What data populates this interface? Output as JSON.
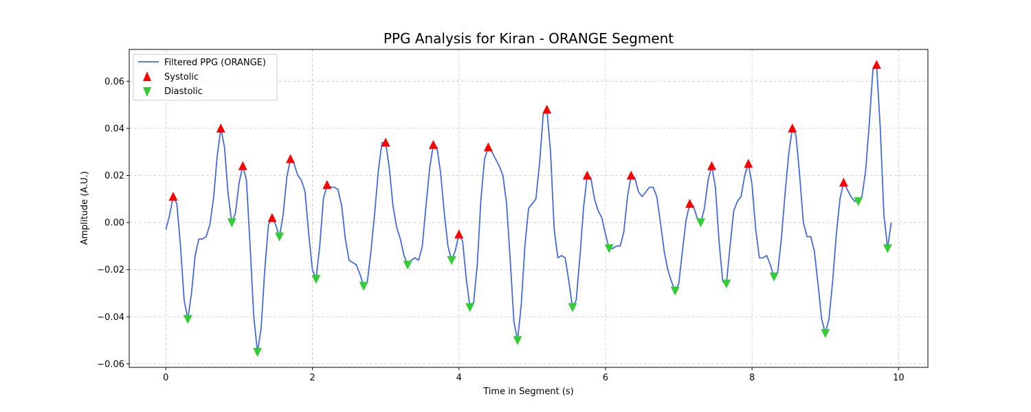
{
  "chart_data": {
    "type": "line",
    "title": "PPG Analysis for Kiran - ORANGE Segment",
    "xlabel": "Time in Segment (s)",
    "ylabel": "Amplitude (A.U.)",
    "xlim": [
      -0.5,
      10.4
    ],
    "ylim": [
      -0.0615,
      0.0735
    ],
    "xticks": [
      0,
      2,
      4,
      6,
      8,
      10
    ],
    "xtick_labels": [
      "0",
      "2",
      "4",
      "6",
      "8",
      "10"
    ],
    "yticks": [
      -0.06,
      -0.04,
      -0.02,
      0.0,
      0.02,
      0.04,
      0.06
    ],
    "ytick_labels": [
      "−0.06",
      "−0.04",
      "−0.02",
      "0.00",
      "0.02",
      "0.04",
      "0.06"
    ],
    "grid": true,
    "legend_position": "upper-left",
    "legend": [
      {
        "label": "Filtered PPG (ORANGE)",
        "kind": "line",
        "color": "#4169e1"
      },
      {
        "label": "Systolic",
        "kind": "triangle-up",
        "color": "#ff0000"
      },
      {
        "label": "Diastolic",
        "kind": "triangle-down",
        "color": "#32cd32"
      }
    ],
    "series": [
      {
        "name": "Filtered PPG (ORANGE)",
        "color": "#4169e1",
        "points": [
          [
            0.0,
            -0.003
          ],
          [
            0.05,
            0.003
          ],
          [
            0.1,
            0.011
          ],
          [
            0.15,
            0.008
          ],
          [
            0.2,
            -0.01
          ],
          [
            0.25,
            -0.033
          ],
          [
            0.3,
            -0.041
          ],
          [
            0.35,
            -0.03
          ],
          [
            0.4,
            -0.014
          ],
          [
            0.45,
            -0.007
          ],
          [
            0.5,
            -0.007
          ],
          [
            0.55,
            -0.006
          ],
          [
            0.6,
            -0.001
          ],
          [
            0.65,
            0.01
          ],
          [
            0.7,
            0.028
          ],
          [
            0.75,
            0.04
          ],
          [
            0.8,
            0.032
          ],
          [
            0.85,
            0.012
          ],
          [
            0.9,
            0.0
          ],
          [
            0.95,
            0.004
          ],
          [
            1.0,
            0.017
          ],
          [
            1.05,
            0.024
          ],
          [
            1.1,
            0.018
          ],
          [
            1.15,
            -0.01
          ],
          [
            1.2,
            -0.04
          ],
          [
            1.25,
            -0.055
          ],
          [
            1.3,
            -0.045
          ],
          [
            1.35,
            -0.02
          ],
          [
            1.4,
            -0.001
          ],
          [
            1.45,
            0.002
          ],
          [
            1.5,
            -0.001
          ],
          [
            1.55,
            -0.006
          ],
          [
            1.6,
            0.003
          ],
          [
            1.65,
            0.019
          ],
          [
            1.7,
            0.027
          ],
          [
            1.75,
            0.025
          ],
          [
            1.8,
            0.02
          ],
          [
            1.85,
            0.018
          ],
          [
            1.9,
            0.013
          ],
          [
            1.95,
            -0.005
          ],
          [
            2.0,
            -0.02
          ],
          [
            2.05,
            -0.024
          ],
          [
            2.1,
            -0.01
          ],
          [
            2.15,
            0.01
          ],
          [
            2.2,
            0.016
          ],
          [
            2.25,
            0.015
          ],
          [
            2.3,
            0.015
          ],
          [
            2.35,
            0.014
          ],
          [
            2.4,
            0.007
          ],
          [
            2.45,
            -0.007
          ],
          [
            2.5,
            -0.016
          ],
          [
            2.55,
            -0.017
          ],
          [
            2.6,
            -0.018
          ],
          [
            2.65,
            -0.022
          ],
          [
            2.7,
            -0.027
          ],
          [
            2.75,
            -0.025
          ],
          [
            2.8,
            -0.012
          ],
          [
            2.85,
            0.004
          ],
          [
            2.9,
            0.022
          ],
          [
            2.95,
            0.034
          ],
          [
            3.0,
            0.034
          ],
          [
            3.05,
            0.023
          ],
          [
            3.1,
            0.007
          ],
          [
            3.15,
            -0.002
          ],
          [
            3.2,
            -0.007
          ],
          [
            3.25,
            -0.014
          ],
          [
            3.3,
            -0.018
          ],
          [
            3.35,
            -0.016
          ],
          [
            3.4,
            -0.015
          ],
          [
            3.45,
            -0.016
          ],
          [
            3.5,
            -0.01
          ],
          [
            3.55,
            0.007
          ],
          [
            3.6,
            0.023
          ],
          [
            3.65,
            0.033
          ],
          [
            3.7,
            0.032
          ],
          [
            3.75,
            0.021
          ],
          [
            3.8,
            0.004
          ],
          [
            3.85,
            -0.01
          ],
          [
            3.9,
            -0.016
          ],
          [
            3.95,
            -0.012
          ],
          [
            4.0,
            -0.005
          ],
          [
            4.05,
            -0.008
          ],
          [
            4.1,
            -0.024
          ],
          [
            4.15,
            -0.036
          ],
          [
            4.2,
            -0.034
          ],
          [
            4.25,
            -0.018
          ],
          [
            4.3,
            0.01
          ],
          [
            4.35,
            0.027
          ],
          [
            4.4,
            0.032
          ],
          [
            4.45,
            0.03
          ],
          [
            4.5,
            0.027
          ],
          [
            4.55,
            0.024
          ],
          [
            4.6,
            0.02
          ],
          [
            4.65,
            0.008
          ],
          [
            4.7,
            -0.016
          ],
          [
            4.75,
            -0.042
          ],
          [
            4.8,
            -0.05
          ],
          [
            4.85,
            -0.035
          ],
          [
            4.9,
            -0.01
          ],
          [
            4.95,
            0.006
          ],
          [
            5.0,
            0.008
          ],
          [
            5.05,
            0.01
          ],
          [
            5.1,
            0.025
          ],
          [
            5.15,
            0.046
          ],
          [
            5.2,
            0.048
          ],
          [
            5.25,
            0.03
          ],
          [
            5.3,
            -0.003
          ],
          [
            5.35,
            -0.015
          ],
          [
            5.4,
            -0.014
          ],
          [
            5.45,
            -0.015
          ],
          [
            5.5,
            -0.025
          ],
          [
            5.55,
            -0.036
          ],
          [
            5.6,
            -0.033
          ],
          [
            5.65,
            -0.015
          ],
          [
            5.7,
            0.006
          ],
          [
            5.75,
            0.02
          ],
          [
            5.8,
            0.019
          ],
          [
            5.85,
            0.01
          ],
          [
            5.9,
            0.005
          ],
          [
            5.95,
            0.002
          ],
          [
            6.0,
            -0.005
          ],
          [
            6.05,
            -0.011
          ],
          [
            6.1,
            -0.011
          ],
          [
            6.15,
            -0.01
          ],
          [
            6.2,
            -0.01
          ],
          [
            6.25,
            -0.004
          ],
          [
            6.3,
            0.011
          ],
          [
            6.35,
            0.02
          ],
          [
            6.4,
            0.019
          ],
          [
            6.45,
            0.013
          ],
          [
            6.5,
            0.011
          ],
          [
            6.55,
            0.013
          ],
          [
            6.6,
            0.015
          ],
          [
            6.65,
            0.015
          ],
          [
            6.7,
            0.011
          ],
          [
            6.75,
            0.0
          ],
          [
            6.8,
            -0.012
          ],
          [
            6.85,
            -0.02
          ],
          [
            6.9,
            -0.025
          ],
          [
            6.95,
            -0.029
          ],
          [
            7.0,
            -0.026
          ],
          [
            7.05,
            -0.012
          ],
          [
            7.1,
            0.001
          ],
          [
            7.15,
            0.008
          ],
          [
            7.2,
            0.007
          ],
          [
            7.25,
            0.002
          ],
          [
            7.3,
            0.0
          ],
          [
            7.35,
            0.006
          ],
          [
            7.4,
            0.018
          ],
          [
            7.45,
            0.024
          ],
          [
            7.5,
            0.015
          ],
          [
            7.55,
            -0.008
          ],
          [
            7.6,
            -0.025
          ],
          [
            7.65,
            -0.026
          ],
          [
            7.7,
            -0.01
          ],
          [
            7.75,
            0.005
          ],
          [
            7.8,
            0.009
          ],
          [
            7.85,
            0.011
          ],
          [
            7.9,
            0.02
          ],
          [
            7.95,
            0.025
          ],
          [
            8.0,
            0.016
          ],
          [
            8.05,
            -0.003
          ],
          [
            8.1,
            -0.015
          ],
          [
            8.15,
            -0.015
          ],
          [
            8.2,
            -0.014
          ],
          [
            8.25,
            -0.018
          ],
          [
            8.3,
            -0.023
          ],
          [
            8.35,
            -0.021
          ],
          [
            8.4,
            -0.007
          ],
          [
            8.45,
            0.012
          ],
          [
            8.5,
            0.029
          ],
          [
            8.55,
            0.04
          ],
          [
            8.6,
            0.037
          ],
          [
            8.65,
            0.02
          ],
          [
            8.7,
            0.0
          ],
          [
            8.75,
            -0.006
          ],
          [
            8.8,
            -0.006
          ],
          [
            8.85,
            -0.012
          ],
          [
            8.9,
            -0.026
          ],
          [
            8.95,
            -0.041
          ],
          [
            9.0,
            -0.047
          ],
          [
            9.05,
            -0.041
          ],
          [
            9.1,
            -0.025
          ],
          [
            9.15,
            -0.005
          ],
          [
            9.2,
            0.01
          ],
          [
            9.25,
            0.017
          ],
          [
            9.3,
            0.014
          ],
          [
            9.35,
            0.011
          ],
          [
            9.4,
            0.009
          ],
          [
            9.45,
            0.009
          ],
          [
            9.5,
            0.011
          ],
          [
            9.55,
            0.022
          ],
          [
            9.6,
            0.042
          ],
          [
            9.65,
            0.065
          ],
          [
            9.7,
            0.067
          ],
          [
            9.75,
            0.04
          ],
          [
            9.8,
            0.003
          ],
          [
            9.85,
            -0.011
          ],
          [
            9.9,
            0.0
          ]
        ]
      },
      {
        "name": "Systolic",
        "color": "#ff0000",
        "points": [
          [
            0.1,
            0.011
          ],
          [
            0.75,
            0.04
          ],
          [
            1.05,
            0.024
          ],
          [
            1.45,
            0.002
          ],
          [
            1.7,
            0.027
          ],
          [
            2.2,
            0.016
          ],
          [
            3.0,
            0.034
          ],
          [
            3.65,
            0.033
          ],
          [
            4.0,
            -0.005
          ],
          [
            4.4,
            0.032
          ],
          [
            5.2,
            0.048
          ],
          [
            5.75,
            0.02
          ],
          [
            6.35,
            0.02
          ],
          [
            7.15,
            0.008
          ],
          [
            7.45,
            0.024
          ],
          [
            7.95,
            0.025
          ],
          [
            8.55,
            0.04
          ],
          [
            9.25,
            0.017
          ],
          [
            9.7,
            0.067
          ]
        ]
      },
      {
        "name": "Diastolic",
        "color": "#32cd32",
        "points": [
          [
            0.3,
            -0.041
          ],
          [
            0.9,
            0.0
          ],
          [
            1.25,
            -0.055
          ],
          [
            1.55,
            -0.006
          ],
          [
            2.05,
            -0.024
          ],
          [
            2.7,
            -0.027
          ],
          [
            3.3,
            -0.018
          ],
          [
            3.9,
            -0.016
          ],
          [
            4.15,
            -0.036
          ],
          [
            4.8,
            -0.05
          ],
          [
            5.55,
            -0.036
          ],
          [
            6.05,
            -0.011
          ],
          [
            6.95,
            -0.029
          ],
          [
            7.3,
            0.0
          ],
          [
            7.65,
            -0.026
          ],
          [
            8.3,
            -0.023
          ],
          [
            9.0,
            -0.047
          ],
          [
            9.45,
            0.009
          ],
          [
            9.85,
            -0.011
          ]
        ]
      }
    ]
  }
}
